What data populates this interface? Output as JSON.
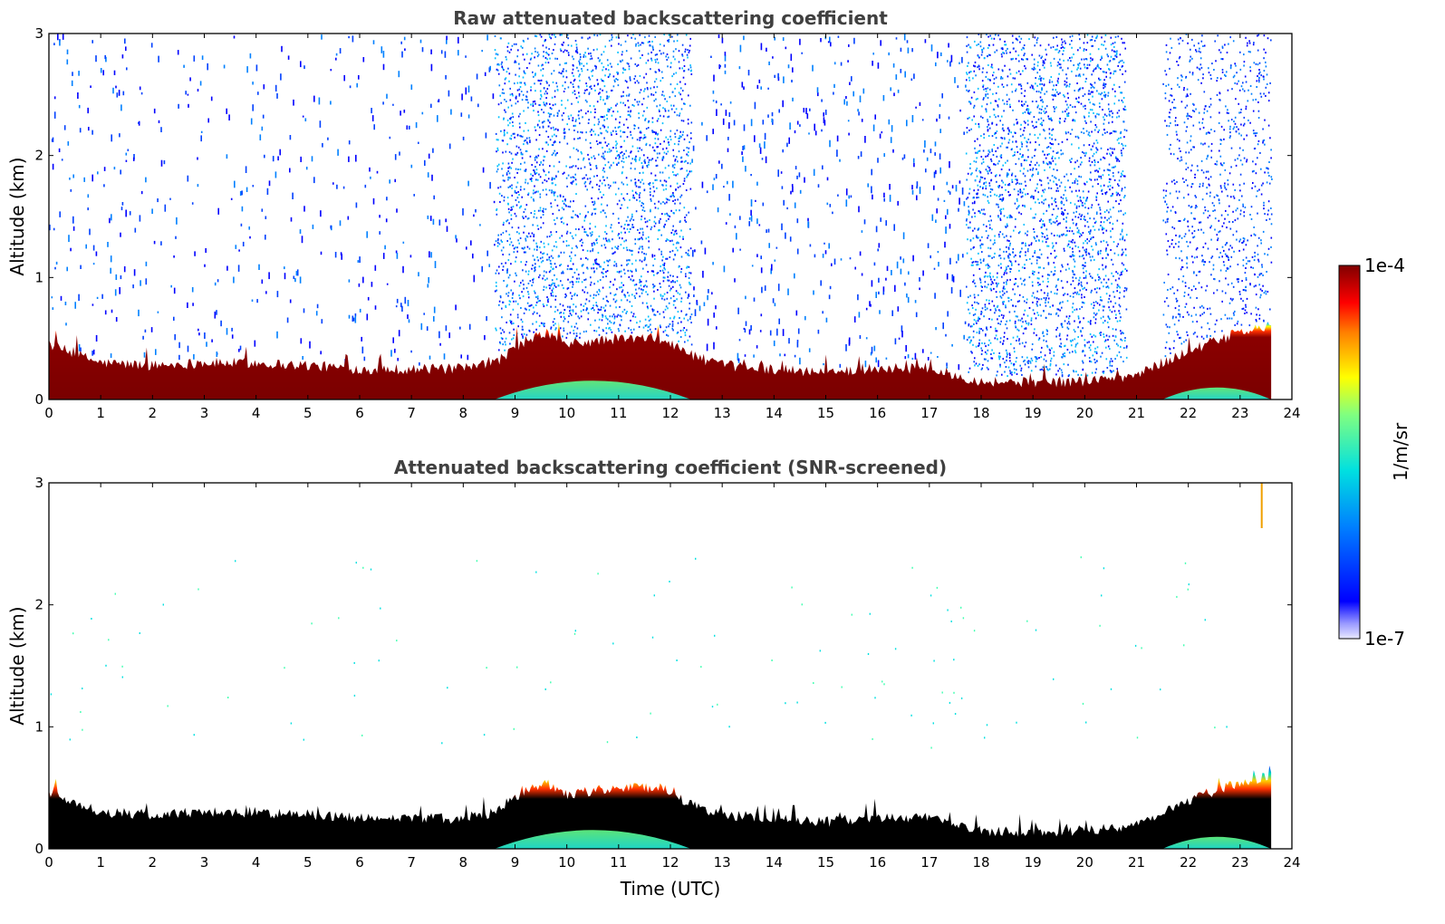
{
  "chart_data": [
    {
      "type": "heatmap",
      "title": "Raw attenuated backscattering coefficient",
      "xlabel": "",
      "ylabel": "Altitude (km)",
      "xlim": [
        0,
        24
      ],
      "ylim": [
        0,
        3
      ],
      "x_ticks": [
        "0",
        "1",
        "2",
        "3",
        "4",
        "5",
        "6",
        "7",
        "8",
        "9",
        "10",
        "11",
        "12",
        "13",
        "14",
        "15",
        "16",
        "17",
        "18",
        "19",
        "20",
        "21",
        "22",
        "23",
        "24"
      ],
      "y_ticks": [
        "0",
        "1",
        "2",
        "3"
      ],
      "boundary_layer_top_km": [
        {
          "t": 0,
          "h": 0.45
        },
        {
          "t": 1,
          "h": 0.3
        },
        {
          "t": 2,
          "h": 0.28
        },
        {
          "t": 3,
          "h": 0.3
        },
        {
          "t": 4,
          "h": 0.3
        },
        {
          "t": 5,
          "h": 0.28
        },
        {
          "t": 6,
          "h": 0.25
        },
        {
          "t": 7,
          "h": 0.25
        },
        {
          "t": 8,
          "h": 0.25
        },
        {
          "t": 8.6,
          "h": 0.3
        },
        {
          "t": 9,
          "h": 0.42
        },
        {
          "t": 9.6,
          "h": 0.55
        },
        {
          "t": 10,
          "h": 0.45
        },
        {
          "t": 11,
          "h": 0.5
        },
        {
          "t": 11.8,
          "h": 0.5
        },
        {
          "t": 12.5,
          "h": 0.35
        },
        {
          "t": 13,
          "h": 0.28
        },
        {
          "t": 14,
          "h": 0.25
        },
        {
          "t": 15,
          "h": 0.22
        },
        {
          "t": 16,
          "h": 0.26
        },
        {
          "t": 17,
          "h": 0.25
        },
        {
          "t": 17.5,
          "h": 0.2
        },
        {
          "t": 18,
          "h": 0.15
        },
        {
          "t": 19,
          "h": 0.14
        },
        {
          "t": 20,
          "h": 0.15
        },
        {
          "t": 21,
          "h": 0.2
        },
        {
          "t": 22,
          "h": 0.4
        },
        {
          "t": 23,
          "h": 0.55
        },
        {
          "t": 23.6,
          "h": 0.6
        }
      ],
      "noise_regions": [
        {
          "t_start": 8.6,
          "t_end": 12.4,
          "level": "high"
        },
        {
          "t_start": 17.7,
          "t_end": 20.8,
          "level": "high"
        },
        {
          "t_start": 21.5,
          "t_end": 23.6,
          "level": "medium"
        },
        {
          "t_start": 0,
          "t_end": 8.6,
          "level": "low"
        },
        {
          "t_start": 12.4,
          "t_end": 17.7,
          "level": "low"
        }
      ],
      "data_end_time": 23.6
    },
    {
      "type": "heatmap",
      "title": "Attenuated backscattering coefficient (SNR-screened)",
      "xlabel": "Time (UTC)",
      "ylabel": "Altitude (km)",
      "xlim": [
        0,
        24
      ],
      "ylim": [
        0,
        3
      ],
      "x_ticks": [
        "0",
        "1",
        "2",
        "3",
        "4",
        "5",
        "6",
        "7",
        "8",
        "9",
        "10",
        "11",
        "12",
        "13",
        "14",
        "15",
        "16",
        "17",
        "18",
        "19",
        "20",
        "21",
        "22",
        "23",
        "24"
      ],
      "y_ticks": [
        "0",
        "1",
        "2",
        "3"
      ],
      "boundary_layer_top_km": [
        {
          "t": 0,
          "h": 0.45
        },
        {
          "t": 1,
          "h": 0.3
        },
        {
          "t": 2,
          "h": 0.28
        },
        {
          "t": 3,
          "h": 0.3
        },
        {
          "t": 4,
          "h": 0.3
        },
        {
          "t": 5,
          "h": 0.28
        },
        {
          "t": 6,
          "h": 0.25
        },
        {
          "t": 7,
          "h": 0.25
        },
        {
          "t": 8,
          "h": 0.25
        },
        {
          "t": 8.6,
          "h": 0.3
        },
        {
          "t": 9,
          "h": 0.42
        },
        {
          "t": 9.6,
          "h": 0.55
        },
        {
          "t": 10,
          "h": 0.45
        },
        {
          "t": 11,
          "h": 0.5
        },
        {
          "t": 11.8,
          "h": 0.5
        },
        {
          "t": 12.5,
          "h": 0.35
        },
        {
          "t": 13,
          "h": 0.28
        },
        {
          "t": 14,
          "h": 0.25
        },
        {
          "t": 15,
          "h": 0.22
        },
        {
          "t": 16,
          "h": 0.26
        },
        {
          "t": 17,
          "h": 0.25
        },
        {
          "t": 17.5,
          "h": 0.2
        },
        {
          "t": 18,
          "h": 0.15
        },
        {
          "t": 19,
          "h": 0.14
        },
        {
          "t": 20,
          "h": 0.15
        },
        {
          "t": 21,
          "h": 0.2
        },
        {
          "t": 22,
          "h": 0.4
        },
        {
          "t": 23,
          "h": 0.55
        },
        {
          "t": 23.6,
          "h": 0.6
        }
      ],
      "data_end_time": 23.6
    }
  ],
  "colorbar": {
    "label": "1/m/sr",
    "max_label": "1e-4",
    "min_label": "1e-7",
    "colormap": "jet",
    "scale": "log"
  }
}
